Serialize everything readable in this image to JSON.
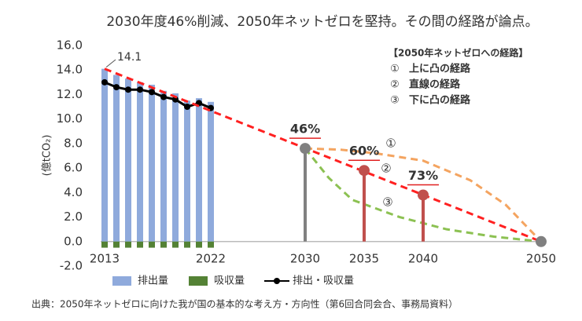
{
  "chart_data": {
    "type": "combo",
    "title": "2030年度46%削減、2050年ネットゼロを堅持。その間の経路が論点。",
    "y_label": "(億tCO₂)",
    "source": "出典：2050年ネットゼロに向けた我が国の基本的な考え方・方向性（第6回合同会合、事務局資料）",
    "xlim": [
      2013,
      2050
    ],
    "xticks": [
      2013,
      2022,
      2030,
      2035,
      2040,
      2050
    ],
    "ylim": [
      -2,
      16
    ],
    "yticks": [
      {
        "value": -2,
        "label": "-2.0",
        "color": "#e02020"
      },
      {
        "value": 0,
        "label": "0.0"
      },
      {
        "value": 2,
        "label": "2.0"
      },
      {
        "value": 4,
        "label": "4.0"
      },
      {
        "value": 6,
        "label": "6.0"
      },
      {
        "value": 8,
        "label": "8.0"
      },
      {
        "value": 10,
        "label": "10.0"
      },
      {
        "value": 12,
        "label": "12.0"
      },
      {
        "value": 14,
        "label": "14.0"
      },
      {
        "value": 16,
        "label": "16.0"
      }
    ],
    "grid": false,
    "series": [
      {
        "name": "排出量",
        "type": "bar",
        "color": "#8faadc",
        "x": [
          2013,
          2014,
          2015,
          2016,
          2017,
          2018,
          2019,
          2020,
          2021,
          2022
        ],
        "values": [
          14.1,
          13.6,
          13.3,
          13.0,
          12.8,
          12.3,
          12.1,
          11.5,
          11.7,
          11.4
        ]
      },
      {
        "name": "吸収量",
        "type": "bar",
        "color": "#548235",
        "x": [
          2013,
          2014,
          2015,
          2016,
          2017,
          2018,
          2019,
          2020,
          2021,
          2022
        ],
        "values": [
          -0.5,
          -0.5,
          -0.5,
          -0.5,
          -0.5,
          -0.5,
          -0.5,
          -0.5,
          -0.5,
          -0.5
        ]
      },
      {
        "name": "排出・吸収量",
        "type": "line",
        "color": "#000000",
        "x": [
          2013,
          2014,
          2015,
          2016,
          2017,
          2018,
          2019,
          2020,
          2021,
          2022
        ],
        "values": [
          13.0,
          12.6,
          12.4,
          12.4,
          12.2,
          11.8,
          11.6,
          11.0,
          11.3,
          10.9
        ]
      }
    ],
    "routes": {
      "title": "【2050年ネットゼロへの経路】",
      "series": [
        {
          "tag": "①",
          "name": "上に凸の経路",
          "type": "line",
          "dashed": true,
          "color": "#f4a460",
          "x": [
            2030,
            2033,
            2036,
            2040,
            2044,
            2047,
            2050
          ],
          "values": [
            7.6,
            7.5,
            7.2,
            6.6,
            5.0,
            3.0,
            0
          ]
        },
        {
          "tag": "②",
          "name": "直線の経路",
          "type": "line",
          "dashed": true,
          "color": "#ff2020",
          "x": [
            2013,
            2050
          ],
          "values": [
            14.1,
            0
          ]
        },
        {
          "tag": "③",
          "name": "下に凸の経路",
          "type": "line",
          "dashed": true,
          "color": "#8cc152",
          "x": [
            2030,
            2032,
            2034,
            2038,
            2042,
            2046,
            2050
          ],
          "values": [
            7.6,
            5.2,
            3.4,
            2.0,
            1.0,
            0.4,
            0
          ]
        }
      ]
    },
    "targets": [
      {
        "x": 2030,
        "value": 7.6,
        "label": "46%",
        "color": "#808080"
      },
      {
        "x": 2035,
        "value": 5.8,
        "label": "60%",
        "color": "#c0504d"
      },
      {
        "x": 2040,
        "value": 3.8,
        "label": "73%",
        "color": "#c0504d"
      },
      {
        "x": 2050,
        "value": 0,
        "color": "#808080"
      }
    ]
  }
}
